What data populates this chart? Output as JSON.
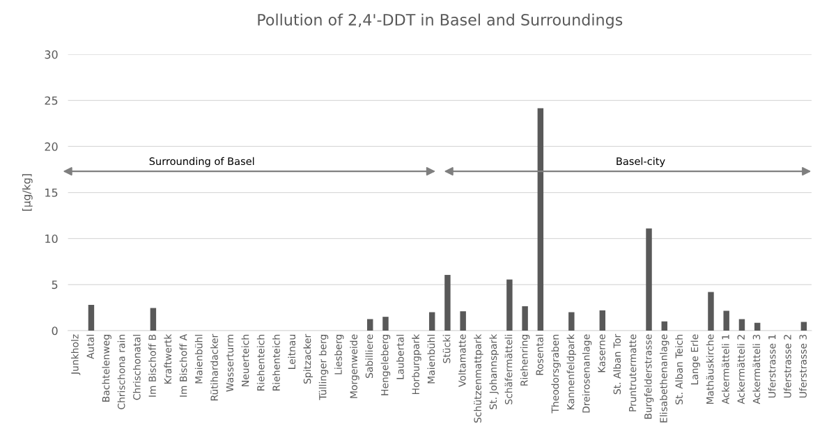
{
  "chart_data": {
    "type": "bar",
    "title": "Pollution of 2,4'-DDT in Basel and Surroundings",
    "ylabel": "[µg/kg]",
    "categories": [
      "Junkholz",
      "Autal",
      "Bachtelenweg",
      "Chrischona rain",
      "Chrischonatal",
      "Im Bischoff B",
      "Kraftwertk",
      "Im Bischoff A",
      "Maienbühl",
      "Rütihardacker",
      "Wasserturm",
      "Neuerteich",
      "Riehenteich",
      "Riehenteich",
      "Leitnau",
      "Spitzacker",
      "Tüllinger berg",
      "Liesberg",
      "Morgenweide",
      "Sabilliere",
      "Hengeleberg",
      "Laubertal",
      "Horburgpark",
      "Maienbühl",
      "Stücki",
      "Voltamatte",
      "Schützenmattpark",
      "St. Johannspark",
      "Schäfermätteli",
      "Riehenring",
      "Rosental",
      "Theodorsgraben",
      "Kannenfeldpark",
      "Dreirosenanlage",
      "Kaserne",
      "St. Alban Tor",
      "Pruntrutermatte",
      "Burgfelderstrasse",
      "Elisabethenanlage",
      "St. Alban Teich",
      "Lange Erle",
      "Mathäuskirche",
      "Ackermätteli 1",
      "Ackermätteli 2",
      "Ackermätteli 3",
      "Uferstrasse 1",
      "Uferstrasse 2",
      "Uferstrasse 3"
    ],
    "values": [
      0,
      2.8,
      0,
      0,
      0,
      2.45,
      0,
      0,
      0,
      0,
      0,
      0,
      0,
      0,
      0,
      0,
      0,
      0,
      0,
      1.25,
      1.5,
      0,
      0,
      2.0,
      6.05,
      2.1,
      0,
      0,
      5.55,
      2.65,
      24.15,
      0,
      2.0,
      0,
      2.2,
      0,
      0,
      11.1,
      1.0,
      0,
      0,
      4.2,
      2.15,
      1.25,
      0.85,
      0,
      0,
      0.95
    ],
    "color": "#595959",
    "ylim": [
      0,
      30
    ],
    "yticks": [
      0,
      5,
      10,
      15,
      20,
      25,
      30
    ],
    "grid": "y",
    "annotations": [
      "Surrounding of Basel",
      "Basel-city"
    ]
  }
}
